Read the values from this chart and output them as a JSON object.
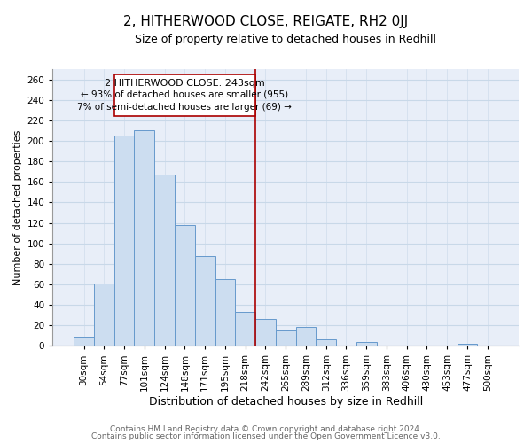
{
  "title": "2, HITHERWOOD CLOSE, REIGATE, RH2 0JJ",
  "subtitle": "Size of property relative to detached houses in Redhill",
  "xlabel": "Distribution of detached houses by size in Redhill",
  "ylabel": "Number of detached properties",
  "bin_labels": [
    "30sqm",
    "54sqm",
    "77sqm",
    "101sqm",
    "124sqm",
    "148sqm",
    "171sqm",
    "195sqm",
    "218sqm",
    "242sqm",
    "265sqm",
    "289sqm",
    "312sqm",
    "336sqm",
    "359sqm",
    "383sqm",
    "406sqm",
    "430sqm",
    "453sqm",
    "477sqm",
    "500sqm"
  ],
  "bar_heights": [
    9,
    61,
    205,
    210,
    167,
    118,
    88,
    65,
    33,
    26,
    15,
    18,
    6,
    0,
    4,
    0,
    0,
    0,
    0,
    2,
    0
  ],
  "bar_color": "#ccddf0",
  "bar_edge_color": "#6699cc",
  "grid_color": "#c8d8e8",
  "vline_x_idx": 9,
  "vline_color": "#aa0000",
  "annotation_title": "2 HITHERWOOD CLOSE: 243sqm",
  "annotation_line1": "← 93% of detached houses are smaller (955)",
  "annotation_line2": "7% of semi-detached houses are larger (69) →",
  "annotation_box_color": "#ffffff",
  "annotation_box_edge": "#aa0000",
  "footer1": "Contains HM Land Registry data © Crown copyright and database right 2024.",
  "footer2": "Contains public sector information licensed under the Open Government Licence v3.0.",
  "ylim": [
    0,
    270
  ],
  "yticks": [
    0,
    20,
    40,
    60,
    80,
    100,
    120,
    140,
    160,
    180,
    200,
    220,
    240,
    260
  ],
  "title_fontsize": 11,
  "subtitle_fontsize": 9,
  "xlabel_fontsize": 9,
  "ylabel_fontsize": 8,
  "tick_fontsize": 7.5,
  "annot_title_fontsize": 8,
  "annot_text_fontsize": 7.5,
  "footer_fontsize": 6.5,
  "plot_bg_color": "#e8eef8",
  "fig_bg_color": "#ffffff"
}
